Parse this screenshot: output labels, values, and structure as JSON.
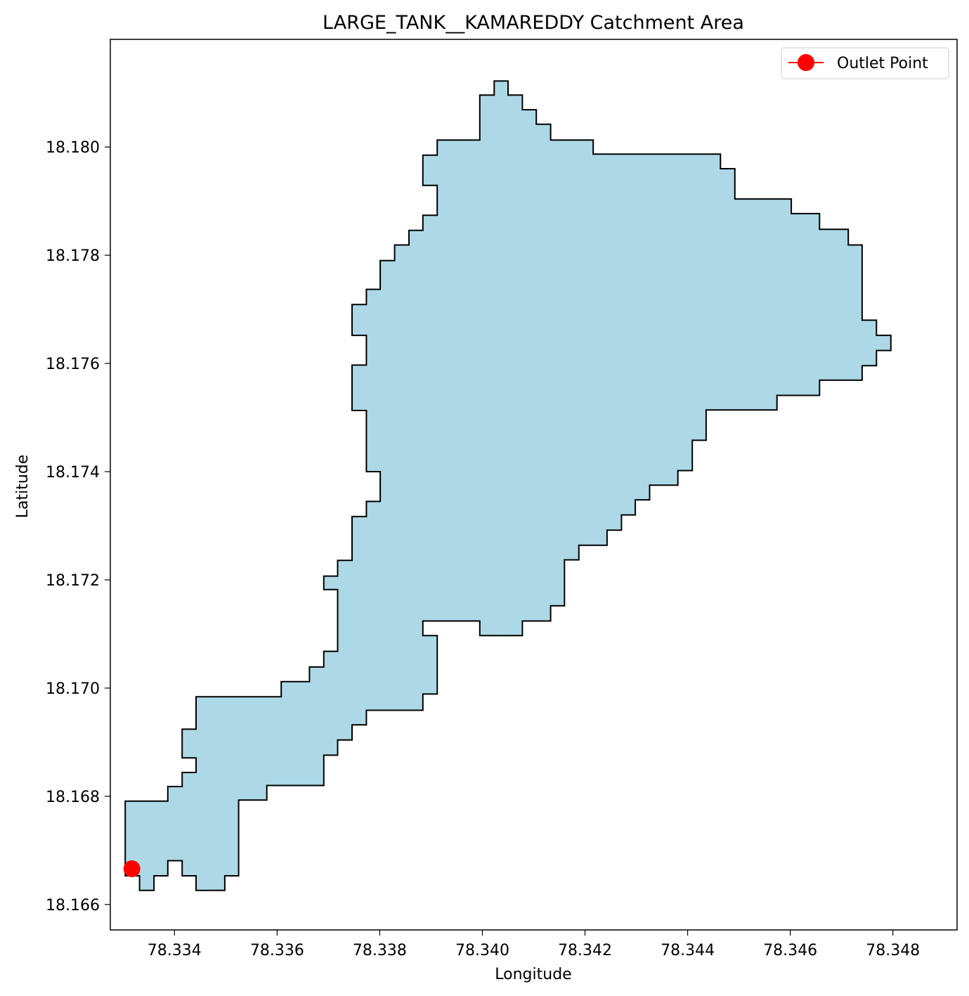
{
  "chart_data": {
    "type": "area",
    "title": "LARGE_TANK__KAMAREDDY Catchment Area",
    "xlabel": "Longitude",
    "ylabel": "Latitude",
    "xlim": [
      78.33275,
      78.34925
    ],
    "ylim": [
      18.16553,
      18.18199
    ],
    "x_ticks": [
      78.334,
      78.336,
      78.338,
      78.34,
      78.342,
      78.344,
      78.346,
      78.348
    ],
    "x_tick_labels": [
      "78.334",
      "78.336",
      "78.338",
      "78.340",
      "78.342",
      "78.344",
      "78.346",
      "78.348"
    ],
    "y_ticks": [
      18.166,
      18.168,
      18.17,
      18.172,
      18.174,
      18.176,
      18.178,
      18.18
    ],
    "y_tick_labels": [
      "18.166",
      "18.168",
      "18.170",
      "18.172",
      "18.174",
      "18.176",
      "18.178",
      "18.180"
    ],
    "grid": false,
    "legend_position": "top-right",
    "catchment_fill_color": "#add8e6",
    "catchment_edge_color": "#000000",
    "outlet_color": "#ff0000",
    "catchment_polygon": [
      [
        78.33304,
        18.16791
      ],
      [
        78.33387,
        18.16791
      ],
      [
        78.33387,
        18.16818
      ],
      [
        78.33415,
        18.16818
      ],
      [
        78.33415,
        18.16844
      ],
      [
        78.33442,
        18.16844
      ],
      [
        78.33442,
        18.16871
      ],
      [
        78.33415,
        18.16871
      ],
      [
        78.33415,
        18.16924
      ],
      [
        78.33442,
        18.16924
      ],
      [
        78.33442,
        18.16984
      ],
      [
        78.33608,
        18.16984
      ],
      [
        78.33608,
        18.17012
      ],
      [
        78.33663,
        18.17012
      ],
      [
        78.33663,
        18.17039
      ],
      [
        78.33691,
        18.17039
      ],
      [
        78.33691,
        18.17068
      ],
      [
        78.33718,
        18.17068
      ],
      [
        78.33718,
        18.17182
      ],
      [
        78.33691,
        18.17182
      ],
      [
        78.33691,
        18.17207
      ],
      [
        78.33718,
        18.17207
      ],
      [
        78.33718,
        18.17236
      ],
      [
        78.33746,
        18.17236
      ],
      [
        78.33746,
        18.17317
      ],
      [
        78.33774,
        18.17317
      ],
      [
        78.33774,
        18.17345
      ],
      [
        78.33801,
        18.17345
      ],
      [
        78.33801,
        18.174
      ],
      [
        78.33774,
        18.174
      ],
      [
        78.33774,
        18.17513
      ],
      [
        78.33746,
        18.17513
      ],
      [
        78.33746,
        18.17597
      ],
      [
        78.33774,
        18.17597
      ],
      [
        78.33774,
        18.17652
      ],
      [
        78.33746,
        18.17652
      ],
      [
        78.33746,
        18.17709
      ],
      [
        78.33774,
        18.17709
      ],
      [
        78.33774,
        18.17737
      ],
      [
        78.33801,
        18.17737
      ],
      [
        78.33801,
        18.1779
      ],
      [
        78.33829,
        18.1779
      ],
      [
        78.33829,
        18.17819
      ],
      [
        78.33857,
        18.17819
      ],
      [
        78.33857,
        18.17846
      ],
      [
        78.33884,
        18.17846
      ],
      [
        78.33884,
        18.17874
      ],
      [
        78.33912,
        18.17874
      ],
      [
        78.33912,
        18.17929
      ],
      [
        78.33884,
        18.17929
      ],
      [
        78.33884,
        18.17985
      ],
      [
        78.33912,
        18.17985
      ],
      [
        78.33912,
        18.18013
      ],
      [
        78.33995,
        18.18013
      ],
      [
        78.33995,
        18.18096
      ],
      [
        78.34023,
        18.18096
      ],
      [
        78.34023,
        18.18122
      ],
      [
        78.3405,
        18.18122
      ],
      [
        78.3405,
        18.18096
      ],
      [
        78.34078,
        18.18096
      ],
      [
        78.34078,
        18.18069
      ],
      [
        78.34105,
        18.18069
      ],
      [
        78.34105,
        18.18042
      ],
      [
        78.34133,
        18.18042
      ],
      [
        78.34133,
        18.18013
      ],
      [
        78.34216,
        18.18013
      ],
      [
        78.34216,
        18.17987
      ],
      [
        78.34464,
        18.17987
      ],
      [
        78.34464,
        18.1796
      ],
      [
        78.34492,
        18.1796
      ],
      [
        78.34492,
        18.17904
      ],
      [
        78.34602,
        18.17904
      ],
      [
        78.34602,
        18.17877
      ],
      [
        78.34657,
        18.17877
      ],
      [
        78.34657,
        18.17848
      ],
      [
        78.34713,
        18.17848
      ],
      [
        78.34713,
        18.17819
      ],
      [
        78.3474,
        18.17819
      ],
      [
        78.3474,
        18.1768
      ],
      [
        78.34768,
        18.1768
      ],
      [
        78.34768,
        18.17652
      ],
      [
        78.34796,
        18.17652
      ],
      [
        78.34796,
        18.17624
      ],
      [
        78.34768,
        18.17624
      ],
      [
        78.34768,
        18.17596
      ],
      [
        78.3474,
        18.17596
      ],
      [
        78.3474,
        18.17569
      ],
      [
        78.34657,
        18.17569
      ],
      [
        78.34657,
        18.17541
      ],
      [
        78.34574,
        18.17541
      ],
      [
        78.34574,
        18.17514
      ],
      [
        78.34436,
        18.17514
      ],
      [
        78.34436,
        18.17458
      ],
      [
        78.34409,
        18.17458
      ],
      [
        78.34409,
        18.17402
      ],
      [
        78.34381,
        18.17402
      ],
      [
        78.34381,
        18.17375
      ],
      [
        78.34326,
        18.17375
      ],
      [
        78.34326,
        18.17348
      ],
      [
        78.34298,
        18.17348
      ],
      [
        78.34298,
        18.1732
      ],
      [
        78.34271,
        18.1732
      ],
      [
        78.34271,
        18.17292
      ],
      [
        78.34243,
        18.17292
      ],
      [
        78.34243,
        18.17264
      ],
      [
        78.34188,
        18.17264
      ],
      [
        78.34188,
        18.17237
      ],
      [
        78.3416,
        18.17237
      ],
      [
        78.3416,
        18.17152
      ],
      [
        78.34133,
        18.17152
      ],
      [
        78.34133,
        18.17124
      ],
      [
        78.34078,
        18.17124
      ],
      [
        78.34078,
        18.17097
      ],
      [
        78.33995,
        18.17097
      ],
      [
        78.33995,
        18.17124
      ],
      [
        78.33884,
        18.17124
      ],
      [
        78.33884,
        18.17097
      ],
      [
        78.33912,
        18.17097
      ],
      [
        78.33912,
        18.16989
      ],
      [
        78.33884,
        18.16989
      ],
      [
        78.33884,
        18.16959
      ],
      [
        78.33774,
        18.16959
      ],
      [
        78.33774,
        18.16932
      ],
      [
        78.33746,
        18.16932
      ],
      [
        78.33746,
        18.16904
      ],
      [
        78.33718,
        18.16904
      ],
      [
        78.33718,
        18.16876
      ],
      [
        78.33691,
        18.16876
      ],
      [
        78.33691,
        18.1682
      ],
      [
        78.3358,
        18.1682
      ],
      [
        78.3358,
        18.16793
      ],
      [
        78.33525,
        18.16793
      ],
      [
        78.33525,
        18.16653
      ],
      [
        78.33498,
        18.16653
      ],
      [
        78.33498,
        18.16626
      ],
      [
        78.33442,
        18.16626
      ],
      [
        78.33442,
        18.16653
      ],
      [
        78.33415,
        18.16653
      ],
      [
        78.33415,
        18.16681
      ],
      [
        78.33387,
        18.16681
      ],
      [
        78.33387,
        18.16653
      ],
      [
        78.3336,
        18.16653
      ],
      [
        78.3336,
        18.16626
      ],
      [
        78.33332,
        18.16626
      ],
      [
        78.33332,
        18.16653
      ],
      [
        78.33304,
        18.16653
      ]
    ],
    "outlet_point": {
      "x": 78.33317,
      "y": 18.16666
    },
    "series": [
      {
        "name": "Outlet Point",
        "x": [
          78.33317
        ],
        "y": [
          18.16666
        ]
      }
    ]
  },
  "legend": {
    "outlet_label": "Outlet Point"
  }
}
